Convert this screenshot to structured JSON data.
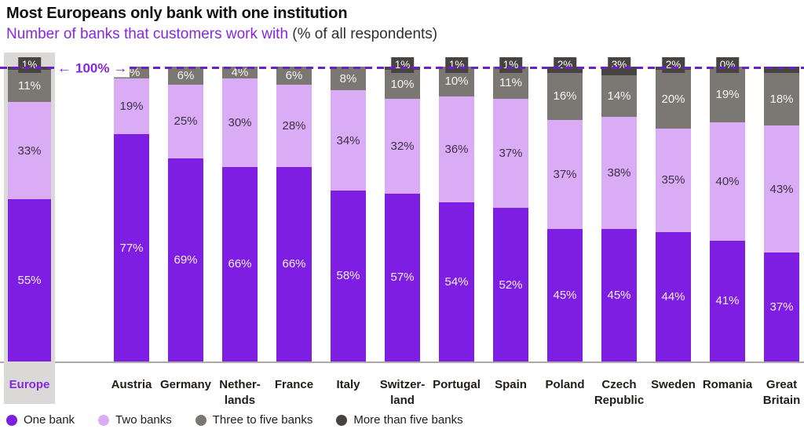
{
  "chart_data": {
    "type": "bar",
    "stacked": true,
    "title": "Most Europeans only bank with one institution",
    "subtitle": {
      "highlight": "Number of banks that customers work with",
      "suffix": " (% of all respondents)"
    },
    "reference_line": {
      "value": 100,
      "label": "100%"
    },
    "categories": [
      "Europe",
      "Austria",
      "Germany",
      "Nether-\nlands",
      "France",
      "Italy",
      "Switzer-\nland",
      "Portugal",
      "Spain",
      "Poland",
      "Czech\nRepublic",
      "Sweden",
      "Romania",
      "Great\nBritain"
    ],
    "highlighted_category": "Europe",
    "series": [
      {
        "name": "One bank",
        "color": "#7e1ee2",
        "label_color": "#f4edfd",
        "values": [
          55,
          77,
          69,
          66,
          66,
          58,
          57,
          54,
          52,
          45,
          45,
          44,
          41,
          37
        ]
      },
      {
        "name": "Two banks",
        "color": "#d9acf5",
        "label_color": "#3d3148",
        "values": [
          33,
          19,
          25,
          30,
          28,
          34,
          32,
          36,
          37,
          37,
          38,
          35,
          40,
          43
        ]
      },
      {
        "name": "Three to five banks",
        "color": "#7b7773",
        "label_color": "#f7f5f3",
        "values": [
          11,
          4,
          6,
          4,
          6,
          8,
          10,
          10,
          11,
          16,
          14,
          20,
          19,
          18
        ]
      },
      {
        "name": "More than five banks",
        "color": "#474340",
        "label_color": "#ffffff",
        "values": [
          1,
          0,
          0,
          0,
          0,
          0,
          1,
          1,
          1,
          2,
          3,
          2,
          0,
          2
        ]
      }
    ],
    "top_badges": [
      "1%",
      null,
      null,
      null,
      null,
      null,
      "1%",
      "1%",
      "1%",
      "2%",
      "3%",
      "2%",
      "0%",
      null
    ],
    "ylim": [
      0,
      100
    ],
    "legend_position": "bottom",
    "colors": {
      "accent": "#8527e0",
      "dashed_line": "#6c20c9",
      "badge_bg": "#474340",
      "highlight_panel": "#dad9d7",
      "baseline": "#aca9a6",
      "title": "#111111"
    }
  }
}
